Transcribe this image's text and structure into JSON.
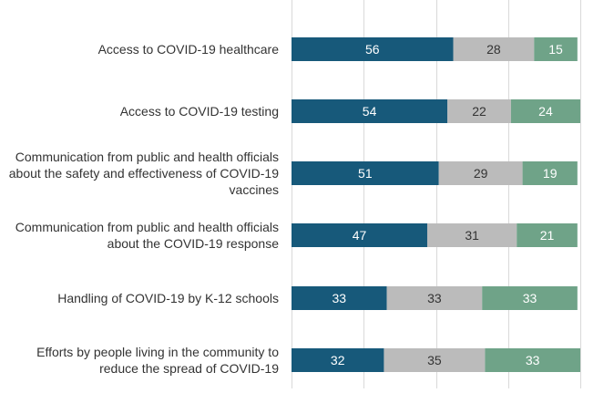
{
  "chart_data": {
    "type": "bar",
    "orientation": "horizontal",
    "stacked": true,
    "categories": [
      [
        "Access to COVID-19 healthcare"
      ],
      [
        "Access to COVID-19 testing"
      ],
      [
        "Communication from public and health officials",
        "about the safety and effectiveness of COVID-19",
        "vaccines"
      ],
      [
        "Communication from public and health officials",
        "about the COVID-19 response"
      ],
      [
        "Handling of COVID-19 by K-12 schools"
      ],
      [
        "Efforts by people living in the community to",
        "reduce the spread of COVID-19"
      ]
    ],
    "series": [
      {
        "values": [
          56,
          54,
          51,
          47,
          33,
          32
        ],
        "color": "#17597a",
        "label_color": "#ffffff"
      },
      {
        "values": [
          28,
          22,
          29,
          31,
          33,
          35
        ],
        "color": "#bbbbbb",
        "label_color": "#333333"
      },
      {
        "values": [
          15,
          24,
          19,
          21,
          33,
          33
        ],
        "color": "#6fa388",
        "label_color": "#ffffff"
      }
    ],
    "xlim": [
      0,
      100
    ],
    "grid": true,
    "legend": "none",
    "title": "",
    "xlabel": "",
    "ylabel": ""
  }
}
